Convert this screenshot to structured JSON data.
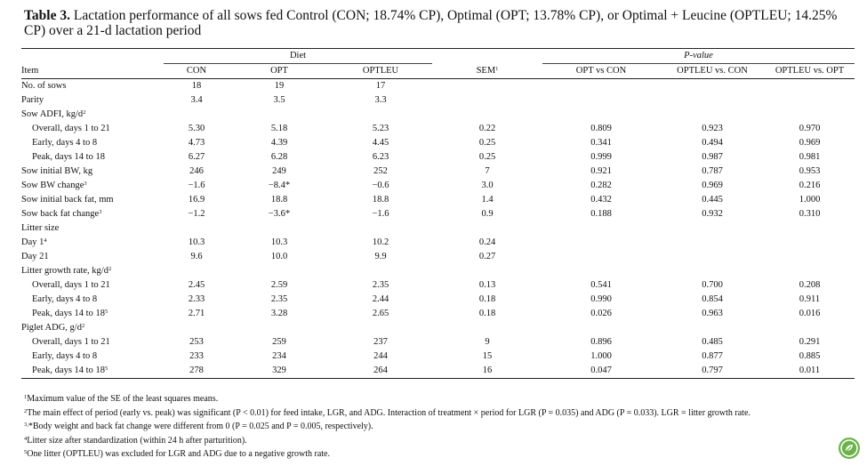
{
  "caption": {
    "label": "Table 3.",
    "text": "Lactation performance of all sows fed Control (CON; 18.74% CP), Optimal (OPT; 13.78% CP), or Optimal + Leucine (OPTLEU; 14.25% CP) over a 21-d lactation period"
  },
  "headers": {
    "diet_group": "Diet",
    "pvalue_group": "P-value",
    "item": "Item",
    "con": "CON",
    "opt": "OPT",
    "optleu": "OPTLEU",
    "sem": "SEM",
    "sem_sup": "1",
    "p1": "OPT vs CON",
    "p2": "OPTLEU vs. CON",
    "p3": "OPTLEU vs. OPT"
  },
  "rows": [
    {
      "label": "No. of sows",
      "sup": "",
      "con": "18",
      "opt": "19",
      "optleu": "17",
      "sem": "",
      "p1": "",
      "p2": "",
      "p3": ""
    },
    {
      "label": "Parity",
      "sup": "",
      "con": "3.4",
      "opt": "3.5",
      "optleu": "3.3",
      "sem": "",
      "p1": "",
      "p2": "",
      "p3": ""
    },
    {
      "label": "Sow ADFI, kg/d",
      "sup": "2",
      "con": "",
      "opt": "",
      "optleu": "",
      "sem": "",
      "p1": "",
      "p2": "",
      "p3": ""
    },
    {
      "label": "Overall, days 1 to 21",
      "sup": "",
      "con": "5.30",
      "opt": "5.18",
      "optleu": "5.23",
      "sem": "0.22",
      "p1": "0.809",
      "p2": "0.923",
      "p3": "0.970"
    },
    {
      "label": "Early, days 4 to 8",
      "sup": "",
      "con": "4.73",
      "opt": "4.39",
      "optleu": "4.45",
      "sem": "0.25",
      "p1": "0.341",
      "p2": "0.494",
      "p3": "0.969"
    },
    {
      "label": "Peak, days 14 to 18",
      "sup": "",
      "con": "6.27",
      "opt": "6.28",
      "optleu": "6.23",
      "sem": "0.25",
      "p1": "0.999",
      "p2": "0.987",
      "p3": "0.981"
    },
    {
      "label": "Sow initial BW, kg",
      "sup": "",
      "con": "246",
      "opt": "249",
      "optleu": "252",
      "sem": "7",
      "p1": "0.921",
      "p2": "0.787",
      "p3": "0.953"
    },
    {
      "label": "Sow BW change",
      "sup": "3",
      "con": "−1.6",
      "opt": "−8.4*",
      "optleu": "−0.6",
      "sem": "3.0",
      "p1": "0.282",
      "p2": "0.969",
      "p3": "0.216"
    },
    {
      "label": "Sow initial back fat, mm",
      "sup": "",
      "con": "16.9",
      "opt": "18.8",
      "optleu": "18.8",
      "sem": "1.4",
      "p1": "0.432",
      "p2": "0.445",
      "p3": "1.000"
    },
    {
      "label": "Sow back fat change",
      "sup": "3",
      "con": "−1.2",
      "opt": "−3.6*",
      "optleu": "−1.6",
      "sem": "0.9",
      "p1": "0.188",
      "p2": "0.932",
      "p3": "0.310"
    },
    {
      "label": "Litter size",
      "sup": "",
      "con": "",
      "opt": "",
      "optleu": "",
      "sem": "",
      "p1": "",
      "p2": "",
      "p3": ""
    },
    {
      "label": "Day 1",
      "sup": "4",
      "con": "10.3",
      "opt": "10.3",
      "optleu": "10.2",
      "sem": "0.24",
      "p1": "",
      "p2": "",
      "p3": ""
    },
    {
      "label": "Day 21",
      "sup": "",
      "con": "9.6",
      "opt": "10.0",
      "optleu": "9.9",
      "sem": "0.27",
      "p1": "",
      "p2": "",
      "p3": ""
    },
    {
      "label": "Litter growth rate, kg/d",
      "sup": "2",
      "con": "",
      "opt": "",
      "optleu": "",
      "sem": "",
      "p1": "",
      "p2": "",
      "p3": ""
    },
    {
      "label": "Overall, days 1 to 21",
      "sup": "",
      "con": "2.45",
      "opt": "2.59",
      "optleu": "2.35",
      "sem": "0.13",
      "p1": "0.541",
      "p2": "0.700",
      "p3": "0.208"
    },
    {
      "label": "Early, days 4 to 8",
      "sup": "",
      "con": "2.33",
      "opt": "2.35",
      "optleu": "2.44",
      "sem": "0.18",
      "p1": "0.990",
      "p2": "0.854",
      "p3": "0.911"
    },
    {
      "label": "Peak, days 14 to 18",
      "sup": "5",
      "con": "2.71",
      "opt": "3.28",
      "optleu": "2.65",
      "sem": "0.18",
      "p1": "0.026",
      "p2": "0.963",
      "p3": "0.016"
    },
    {
      "label": "Piglet ADG, g/d",
      "sup": "2",
      "con": "",
      "opt": "",
      "optleu": "",
      "sem": "",
      "p1": "",
      "p2": "",
      "p3": ""
    },
    {
      "label": "Overall, days 1 to 21",
      "sup": "",
      "con": "253",
      "opt": "259",
      "optleu": "237",
      "sem": "9",
      "p1": "0.896",
      "p2": "0.485",
      "p3": "0.291"
    },
    {
      "label": "Early, days 4 to 8",
      "sup": "",
      "con": "233",
      "opt": "234",
      "optleu": "244",
      "sem": "15",
      "p1": "1.000",
      "p2": "0.877",
      "p3": "0.885"
    },
    {
      "label": "Peak, days 14 to 18",
      "sup": "5",
      "con": "278",
      "opt": "329",
      "optleu": "264",
      "sem": "16",
      "p1": "0.047",
      "p2": "0.797",
      "p3": "0.011"
    }
  ],
  "footnotes": [
    {
      "sup": "1",
      "text": "Maximum value of the SE of the least squares means."
    },
    {
      "sup": "2",
      "text": "The main effect of period (early vs. peak) was significant (P < 0.01) for feed intake, LGR, and ADG. Interaction of treatment × period for LGR (P = 0.035) and ADG (P = 0.033). LGR = litter growth rate."
    },
    {
      "sup": "3,",
      "text": "*Body weight and back fat change were different from 0 (P = 0.025 and P = 0.005, respectively)."
    },
    {
      "sup": "4",
      "text": "Litter size after standardization (within 24 h after parturition)."
    },
    {
      "sup": "5",
      "text": "One litter (OPTLEU) was excluded for LGR and ADG due to a negative growth rate."
    }
  ],
  "badge_icon": "leaf-badge-icon",
  "badge_color": "#6cb24a"
}
